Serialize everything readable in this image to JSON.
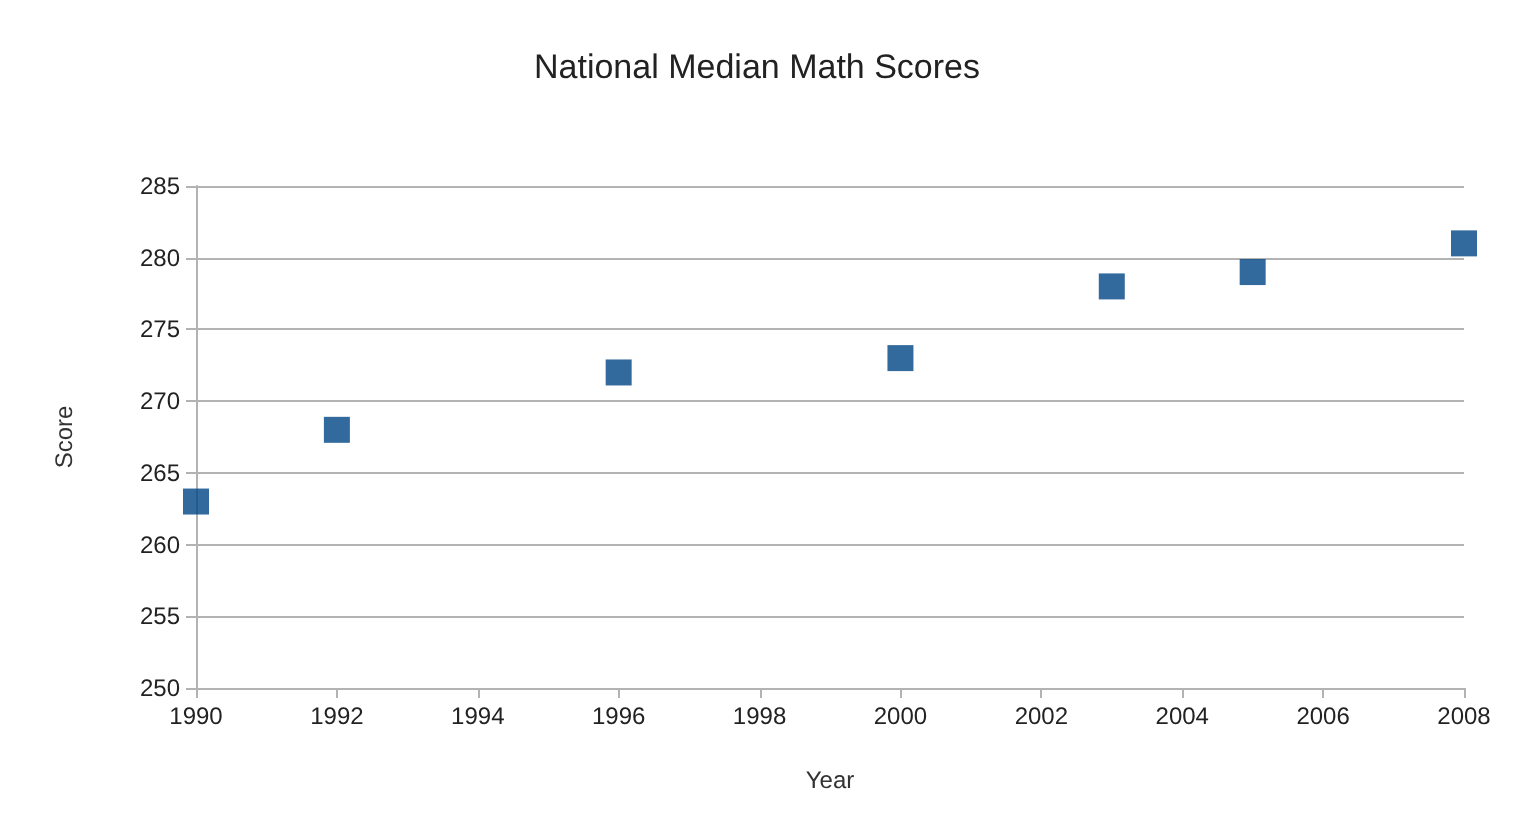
{
  "chart_data": {
    "type": "scatter",
    "title": "National Median Math Scores",
    "xlabel": "Year",
    "ylabel": "Score",
    "x": [
      1990,
      1992,
      1996,
      2000,
      2003,
      2005,
      2008
    ],
    "values": [
      263,
      268,
      272,
      273,
      278,
      279,
      281
    ],
    "color": "#004586",
    "xlim": [
      1990,
      2008
    ],
    "xticks": [
      1990,
      1992,
      1994,
      1996,
      1998,
      2000,
      2002,
      2004,
      2006,
      2008
    ],
    "ylim": [
      250,
      285
    ],
    "yticks": [
      250,
      255,
      260,
      265,
      270,
      275,
      280,
      285
    ],
    "grid": "y",
    "marker": "square"
  }
}
